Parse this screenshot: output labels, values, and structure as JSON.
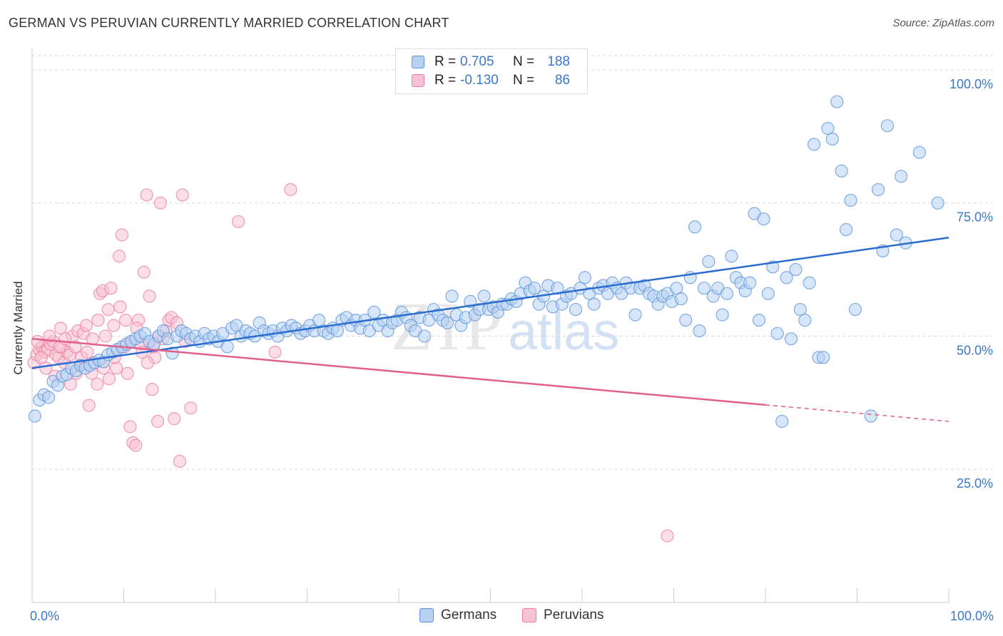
{
  "title": "GERMAN VS PERUVIAN CURRENTLY MARRIED CORRELATION CHART",
  "source": "Source: ZipAtlas.com",
  "watermark": {
    "zip": "ZIP",
    "atlas": "atlas"
  },
  "colors": {
    "blue": "#5b93d9",
    "blue_fill": "#b7d1f2",
    "blue_line": "#2a6ccf",
    "pink": "#ec7da0",
    "pink_fill": "#f7c3d4",
    "pink_line": "#e2608c",
    "grid": "#d9d9d9",
    "axis_label": "#3a78c9"
  },
  "legend": {
    "rows": [
      {
        "r_label": "R =",
        "r_value": "0.705",
        "n_label": "N =",
        "n_value": "188"
      },
      {
        "r_label": "R =",
        "r_value": "-0.130",
        "n_label": "N =",
        "n_value": "86"
      }
    ]
  },
  "bottom_legend": {
    "germans": "Germans",
    "peruvians": "Peruvians"
  },
  "chart_data": {
    "type": "scatter",
    "title": "GERMAN VS PERUVIAN CURRENTLY MARRIED CORRELATION CHART",
    "xlabel": "",
    "ylabel": "Currently Married",
    "xlim": [
      0,
      100
    ],
    "ylim": [
      0,
      104
    ],
    "x_tick_labels": [
      "0.0%",
      "100.0%"
    ],
    "y_ticks": [
      25,
      50,
      75,
      100
    ],
    "y_tick_labels": [
      "25.0%",
      "50.0%",
      "75.0%",
      "100.0%"
    ],
    "x_minor_ticks": [
      0,
      10,
      20,
      30,
      40,
      50,
      60,
      70,
      80,
      90,
      100
    ],
    "grid": true,
    "series": [
      {
        "name": "Germans",
        "r": 0.705,
        "n": 188,
        "trend": {
          "x": [
            0,
            100
          ],
          "y": [
            44.0,
            68.5
          ],
          "dash_from": null
        },
        "points": [
          [
            0.3,
            35
          ],
          [
            0.8,
            38
          ],
          [
            1.3,
            39
          ],
          [
            1.8,
            38.5
          ],
          [
            2.3,
            41.5
          ],
          [
            2.8,
            40.8
          ],
          [
            3.3,
            42.5
          ],
          [
            3.8,
            42.8
          ],
          [
            4.3,
            44
          ],
          [
            4.8,
            43.5
          ],
          [
            5.3,
            44.5
          ],
          [
            5.8,
            44
          ],
          [
            6.3,
            44.5
          ],
          [
            6.8,
            45
          ],
          [
            7.3,
            45.5
          ],
          [
            7.8,
            45.2
          ],
          [
            8.3,
            46.5
          ],
          [
            8.8,
            47
          ],
          [
            9.3,
            47.5
          ],
          [
            9.8,
            48
          ],
          [
            10.3,
            48.5
          ],
          [
            10.8,
            49
          ],
          [
            11.3,
            49.5
          ],
          [
            11.8,
            50
          ],
          [
            12.3,
            50.5
          ],
          [
            12.8,
            49
          ],
          [
            13.3,
            48.5
          ],
          [
            13.8,
            50
          ],
          [
            14.3,
            51
          ],
          [
            14.8,
            49.5
          ],
          [
            15.3,
            46.8
          ],
          [
            15.8,
            50
          ],
          [
            16.3,
            51
          ],
          [
            16.8,
            50.5
          ],
          [
            17.3,
            49.5
          ],
          [
            17.8,
            50
          ],
          [
            18.3,
            49
          ],
          [
            18.8,
            50.5
          ],
          [
            19.3,
            49.5
          ],
          [
            19.8,
            50
          ],
          [
            20.3,
            49
          ],
          [
            20.8,
            50.5
          ],
          [
            21.3,
            48
          ],
          [
            21.8,
            51.5
          ],
          [
            22.3,
            52
          ],
          [
            22.8,
            50
          ],
          [
            23.3,
            51
          ],
          [
            23.8,
            50.5
          ],
          [
            24.3,
            50
          ],
          [
            24.8,
            52.5
          ],
          [
            25.3,
            51
          ],
          [
            25.8,
            50.5
          ],
          [
            26.3,
            51
          ],
          [
            26.8,
            50
          ],
          [
            27.3,
            51.5
          ],
          [
            27.8,
            51
          ],
          [
            28.3,
            52
          ],
          [
            28.8,
            51.5
          ],
          [
            29.3,
            50.5
          ],
          [
            29.8,
            51
          ],
          [
            30.3,
            52
          ],
          [
            30.8,
            51
          ],
          [
            31.3,
            53
          ],
          [
            31.8,
            51
          ],
          [
            32.3,
            50.5
          ],
          [
            32.8,
            51.5
          ],
          [
            33.3,
            51
          ],
          [
            33.8,
            53
          ],
          [
            34.3,
            53.5
          ],
          [
            34.8,
            52
          ],
          [
            35.3,
            53
          ],
          [
            35.8,
            51.5
          ],
          [
            36.3,
            53
          ],
          [
            36.8,
            51
          ],
          [
            37.3,
            54.5
          ],
          [
            37.8,
            52
          ],
          [
            38.3,
            53
          ],
          [
            38.8,
            51
          ],
          [
            39.3,
            52.5
          ],
          [
            39.8,
            53
          ],
          [
            40.3,
            54.5
          ],
          [
            40.8,
            53.5
          ],
          [
            41.3,
            52
          ],
          [
            41.8,
            51
          ],
          [
            42.3,
            53.5
          ],
          [
            42.8,
            50
          ],
          [
            43.3,
            53
          ],
          [
            43.8,
            55
          ],
          [
            44.3,
            54
          ],
          [
            44.8,
            53
          ],
          [
            45.3,
            52.5
          ],
          [
            45.8,
            57.5
          ],
          [
            46.3,
            54
          ],
          [
            46.8,
            52
          ],
          [
            47.3,
            53.5
          ],
          [
            47.8,
            56.5
          ],
          [
            48.3,
            54
          ],
          [
            48.8,
            55
          ],
          [
            49.3,
            57.5
          ],
          [
            49.8,
            55
          ],
          [
            50.3,
            55.5
          ],
          [
            50.8,
            54.5
          ],
          [
            51.3,
            56
          ],
          [
            51.8,
            56
          ],
          [
            52.3,
            57
          ],
          [
            52.8,
            56.5
          ],
          [
            53.3,
            58
          ],
          [
            53.8,
            60
          ],
          [
            54.3,
            58.5
          ],
          [
            54.8,
            59
          ],
          [
            55.3,
            56
          ],
          [
            55.8,
            57.5
          ],
          [
            56.3,
            59.5
          ],
          [
            56.8,
            55.5
          ],
          [
            57.3,
            59
          ],
          [
            57.8,
            56
          ],
          [
            58.3,
            57.5
          ],
          [
            58.8,
            58
          ],
          [
            59.3,
            55
          ],
          [
            59.8,
            59
          ],
          [
            60.3,
            61
          ],
          [
            60.8,
            58
          ],
          [
            61.3,
            56
          ],
          [
            61.8,
            59
          ],
          [
            62.3,
            59.5
          ],
          [
            62.8,
            58
          ],
          [
            63.3,
            60
          ],
          [
            63.8,
            59
          ],
          [
            64.3,
            58
          ],
          [
            64.8,
            60
          ],
          [
            65.3,
            59
          ],
          [
            65.8,
            54
          ],
          [
            66.3,
            59
          ],
          [
            66.8,
            59.5
          ],
          [
            67.3,
            58
          ],
          [
            67.8,
            57.5
          ],
          [
            68.3,
            56
          ],
          [
            68.8,
            57.5
          ],
          [
            69.3,
            58
          ],
          [
            69.8,
            56.5
          ],
          [
            70.3,
            59
          ],
          [
            70.8,
            57
          ],
          [
            71.3,
            53
          ],
          [
            71.8,
            61
          ],
          [
            72.3,
            70.5
          ],
          [
            72.8,
            51
          ],
          [
            73.3,
            59
          ],
          [
            73.8,
            64
          ],
          [
            74.3,
            57.5
          ],
          [
            74.8,
            59
          ],
          [
            75.3,
            54
          ],
          [
            75.8,
            58
          ],
          [
            76.3,
            65
          ],
          [
            76.8,
            61
          ],
          [
            77.3,
            60
          ],
          [
            77.8,
            58.5
          ],
          [
            78.3,
            60
          ],
          [
            78.8,
            73
          ],
          [
            79.3,
            53
          ],
          [
            79.8,
            72
          ],
          [
            80.3,
            58
          ],
          [
            80.8,
            63
          ],
          [
            81.3,
            50.5
          ],
          [
            81.8,
            34
          ],
          [
            82.3,
            61
          ],
          [
            82.8,
            49.5
          ],
          [
            83.3,
            62.5
          ],
          [
            83.8,
            55
          ],
          [
            84.3,
            53
          ],
          [
            84.8,
            60
          ],
          [
            85.3,
            86
          ],
          [
            85.8,
            46
          ],
          [
            86.3,
            46
          ],
          [
            86.8,
            89
          ],
          [
            87.3,
            87
          ],
          [
            87.8,
            94
          ],
          [
            88.3,
            81
          ],
          [
            88.8,
            70
          ],
          [
            89.3,
            75.5
          ],
          [
            89.8,
            55
          ],
          [
            91.5,
            35
          ],
          [
            92.3,
            77.5
          ],
          [
            92.8,
            66
          ],
          [
            93.3,
            89.5
          ],
          [
            94.3,
            69
          ],
          [
            94.8,
            80
          ],
          [
            95.3,
            67.5
          ],
          [
            96.8,
            84.5
          ],
          [
            98.8,
            75
          ]
        ]
      },
      {
        "name": "Peruvians",
        "r": -0.13,
        "n": 86,
        "trend": {
          "x": [
            0,
            100
          ],
          "y": [
            49.5,
            34.0
          ],
          "dash_from": 80
        },
        "points": [
          [
            0.2,
            45
          ],
          [
            0.5,
            46.5
          ],
          [
            0.8,
            47.5
          ],
          [
            1.1,
            48
          ],
          [
            1.4,
            47
          ],
          [
            1.7,
            47.5
          ],
          [
            2,
            48.5
          ],
          [
            2.3,
            49
          ],
          [
            2.6,
            46.5
          ],
          [
            2.9,
            46
          ],
          [
            3.2,
            48
          ],
          [
            3.5,
            45
          ],
          [
            3.8,
            47
          ],
          [
            4.1,
            46.5
          ],
          [
            4.4,
            50
          ],
          [
            4.7,
            48
          ],
          [
            5,
            51
          ],
          [
            5.3,
            44.5
          ],
          [
            5.6,
            50.5
          ],
          [
            5.9,
            52
          ],
          [
            6.2,
            37
          ],
          [
            6.5,
            43
          ],
          [
            6.8,
            45
          ],
          [
            7.1,
            41
          ],
          [
            7.4,
            58
          ],
          [
            7.7,
            58.5
          ],
          [
            8,
            50
          ],
          [
            8.3,
            55
          ],
          [
            8.6,
            59
          ],
          [
            8.9,
            52
          ],
          [
            9.2,
            44
          ],
          [
            9.5,
            65
          ],
          [
            9.8,
            69
          ],
          [
            10.1,
            48
          ],
          [
            10.4,
            43
          ],
          [
            10.7,
            33
          ],
          [
            11,
            30
          ],
          [
            11.3,
            29.5
          ],
          [
            11.6,
            53
          ],
          [
            11.9,
            48.5
          ],
          [
            12.2,
            62
          ],
          [
            12.5,
            76.5
          ],
          [
            12.8,
            57.5
          ],
          [
            13.1,
            40
          ],
          [
            13.4,
            46
          ],
          [
            13.7,
            34
          ],
          [
            14,
            75
          ],
          [
            14.3,
            49.5
          ],
          [
            14.6,
            51
          ],
          [
            14.9,
            53
          ],
          [
            15.2,
            53.5
          ],
          [
            15.5,
            34.5
          ],
          [
            15.8,
            52.5
          ],
          [
            16.1,
            26.5
          ],
          [
            16.4,
            76.5
          ],
          [
            16.7,
            49
          ],
          [
            17.3,
            36.5
          ],
          [
            22.5,
            71.5
          ],
          [
            26.5,
            47
          ],
          [
            28.2,
            77.5
          ],
          [
            69.3,
            12.5
          ],
          [
            1,
            46
          ],
          [
            1.5,
            44
          ],
          [
            2.5,
            42.5
          ],
          [
            3,
            48
          ],
          [
            3.6,
            49.5
          ],
          [
            4.2,
            41
          ],
          [
            4.8,
            43
          ],
          [
            5.4,
            46
          ],
          [
            6,
            47
          ],
          [
            6.6,
            49.5
          ],
          [
            7.2,
            53
          ],
          [
            7.8,
            44
          ],
          [
            8.4,
            42
          ],
          [
            9,
            46
          ],
          [
            9.6,
            55.5
          ],
          [
            10.2,
            53
          ],
          [
            10.8,
            49
          ],
          [
            11.4,
            51.5
          ],
          [
            12,
            47
          ],
          [
            12.6,
            45
          ],
          [
            13.2,
            48
          ],
          [
            13.8,
            50
          ],
          [
            0.6,
            49
          ],
          [
            1.9,
            50
          ],
          [
            3.1,
            51.5
          ]
        ]
      }
    ]
  }
}
